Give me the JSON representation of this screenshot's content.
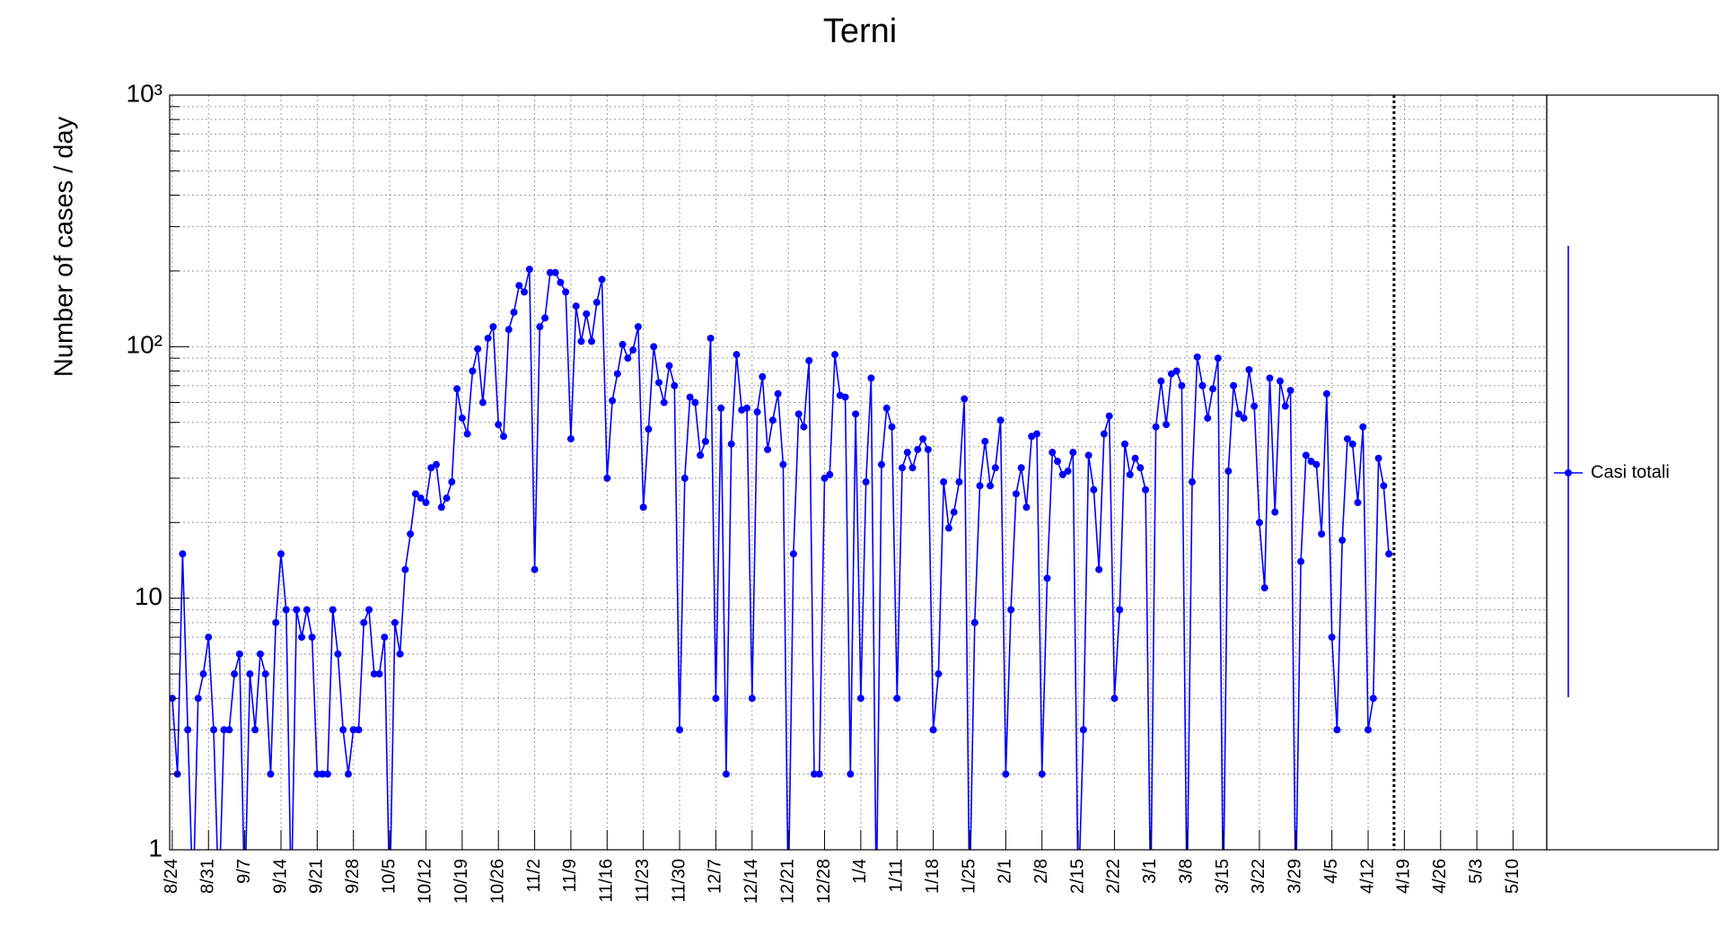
{
  "chart_data": {
    "type": "line",
    "title": "Terni",
    "y_label": "Number of cases / day",
    "categories": [
      "8/24",
      null,
      null,
      null,
      null,
      null,
      null,
      "8/31",
      null,
      null,
      null,
      null,
      null,
      null,
      "9/7",
      null,
      null,
      null,
      null,
      null,
      null,
      "9/14",
      null,
      null,
      null,
      null,
      null,
      null,
      "9/21",
      null,
      null,
      null,
      null,
      null,
      null,
      "9/28",
      null,
      null,
      null,
      null,
      null,
      null,
      "10/5",
      null,
      null,
      null,
      null,
      null,
      null,
      "10/12",
      null,
      null,
      null,
      null,
      null,
      null,
      "10/19",
      null,
      null,
      null,
      null,
      null,
      null,
      "10/26",
      null,
      null,
      null,
      null,
      null,
      null,
      "11/2",
      null,
      null,
      null,
      null,
      null,
      null,
      "11/9",
      null,
      null,
      null,
      null,
      null,
      null,
      "11/16",
      null,
      null,
      null,
      null,
      null,
      null,
      "11/23",
      null,
      null,
      null,
      null,
      null,
      null,
      "11/30",
      null,
      null,
      null,
      null,
      null,
      null,
      "12/7",
      null,
      null,
      null,
      null,
      null,
      null,
      "12/14",
      null,
      null,
      null,
      null,
      null,
      null,
      "12/21",
      null,
      null,
      null,
      null,
      null,
      null,
      "12/28",
      null,
      null,
      null,
      null,
      null,
      null,
      "1/4",
      null,
      null,
      null,
      null,
      null,
      null,
      "1/11",
      null,
      null,
      null,
      null,
      null,
      null,
      "1/18",
      null,
      null,
      null,
      null,
      null,
      null,
      "1/25",
      null,
      null,
      null,
      null,
      null,
      null,
      "2/1",
      null,
      null,
      null,
      null,
      null,
      null,
      "2/8",
      null,
      null,
      null,
      null,
      null,
      null,
      "2/15",
      null,
      null,
      null,
      null,
      null,
      null,
      "2/22",
      null,
      null,
      null,
      null,
      null,
      null,
      "3/1",
      null,
      null,
      null,
      null,
      null,
      null,
      "3/8",
      null,
      null,
      null,
      null,
      null,
      null,
      "3/15",
      null,
      null,
      null,
      null,
      null,
      null,
      "3/22",
      null,
      null,
      null,
      null,
      null,
      null,
      "3/29",
      null,
      null,
      null,
      null,
      null,
      null,
      "4/5",
      null,
      null,
      null,
      null,
      null,
      null,
      "4/12",
      null,
      null,
      null,
      null,
      null,
      null,
      "4/19",
      null,
      null,
      null,
      null,
      null,
      null,
      "4/26",
      null,
      null,
      null,
      null,
      null,
      null,
      "5/3",
      null,
      null,
      null,
      null,
      null,
      null,
      "5/10",
      null,
      null,
      null,
      null,
      null,
      null
    ],
    "series": [
      {
        "name": "Casi totali",
        "color": "#0000ff",
        "values": [
          4,
          2,
          15,
          3,
          0,
          4,
          5,
          7,
          3,
          0,
          3,
          3,
          5,
          6,
          0,
          5,
          3,
          6,
          5,
          2,
          8,
          15,
          9,
          0,
          9,
          7,
          9,
          7,
          2,
          2,
          2,
          9,
          6,
          3,
          2,
          3,
          3,
          8,
          9,
          5,
          5,
          7,
          0,
          8,
          6,
          13,
          18,
          26,
          25,
          24,
          33,
          34,
          23,
          25,
          29,
          68,
          52,
          45,
          80,
          98,
          60,
          108,
          120,
          49,
          44,
          117,
          137,
          175,
          165,
          203,
          13,
          120,
          130,
          197,
          197,
          180,
          165,
          43,
          145,
          105,
          135,
          105,
          150,
          185,
          30,
          61,
          78,
          102,
          90,
          97,
          120,
          23,
          47,
          100,
          72,
          60,
          84,
          70,
          3,
          30,
          63,
          60,
          37,
          42,
          108,
          4,
          57,
          2,
          41,
          93,
          56,
          57,
          4,
          55,
          76,
          39,
          51,
          65,
          34,
          0,
          15,
          54,
          48,
          88,
          2,
          2,
          30,
          31,
          93,
          64,
          63,
          2,
          54,
          4,
          29,
          75,
          0,
          34,
          57,
          48,
          4,
          33,
          38,
          33,
          39,
          43,
          39,
          3,
          5,
          29,
          19,
          22,
          29,
          62,
          0,
          8,
          28,
          42,
          28,
          33,
          51,
          2,
          9,
          26,
          33,
          23,
          44,
          45,
          2,
          12,
          38,
          35,
          31,
          32,
          38,
          0,
          3,
          37,
          27,
          13,
          45,
          53,
          4,
          9,
          41,
          31,
          36,
          33,
          27,
          0,
          48,
          73,
          49,
          78,
          80,
          70,
          0,
          29,
          91,
          70,
          52,
          68,
          90,
          0,
          32,
          70,
          54,
          52,
          81,
          58,
          20,
          11,
          75,
          22,
          73,
          58,
          67,
          0,
          14,
          37,
          35,
          34,
          18,
          65,
          7,
          3,
          17,
          43,
          41,
          24,
          48,
          3,
          4,
          36,
          28,
          15,
          null,
          null,
          null,
          null,
          null,
          null,
          null,
          null,
          null,
          null,
          null,
          null,
          null,
          null,
          null,
          null,
          null,
          null,
          null,
          null,
          null,
          null,
          null,
          null,
          null,
          null,
          null,
          null,
          null,
          null
        ]
      }
    ],
    "ylim": [
      1,
      1000
    ],
    "log_y": true,
    "yticks": [
      1,
      10,
      {
        "value": 100,
        "label": "10²"
      },
      {
        "value": 1000,
        "label": "10³"
      }
    ],
    "yminor": [
      2,
      3,
      4,
      5,
      6,
      7,
      8,
      9,
      20,
      30,
      40,
      50,
      60,
      70,
      80,
      90,
      200,
      300,
      400,
      500,
      600,
      700,
      800,
      900
    ],
    "grid": true,
    "legend": "right",
    "vline": 236
  }
}
